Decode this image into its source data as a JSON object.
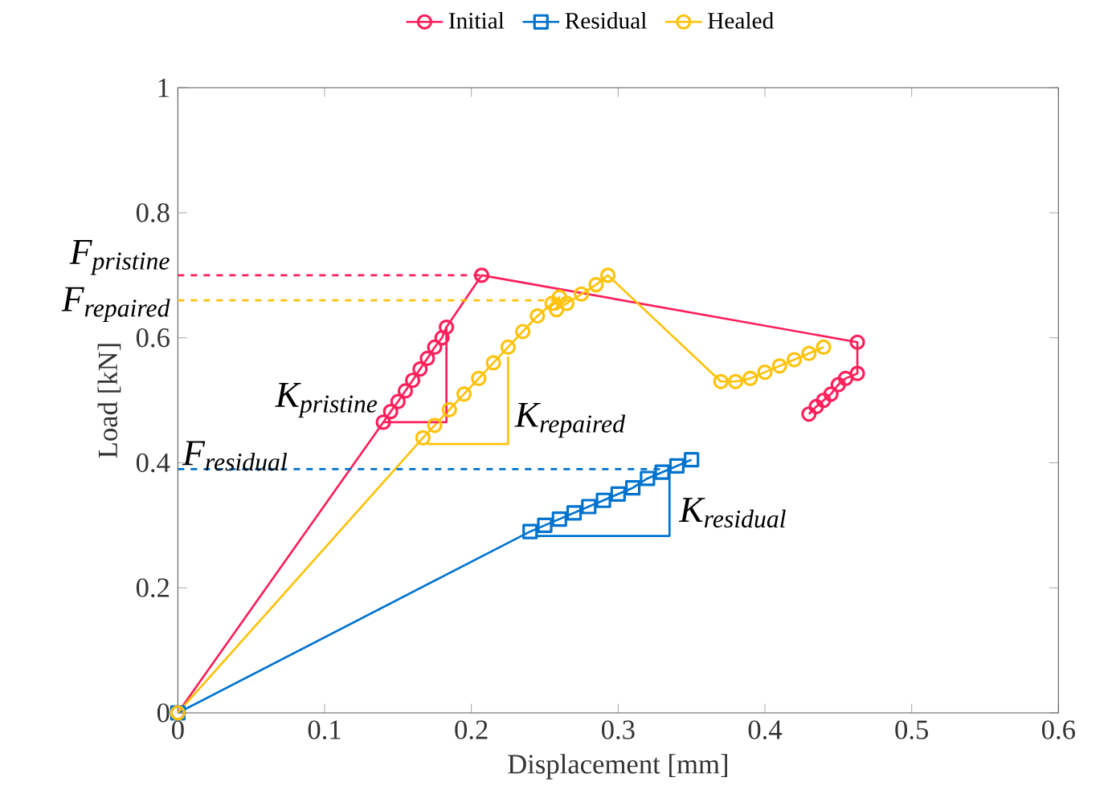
{
  "chart_data": {
    "type": "line",
    "xlabel": "Displacement [mm]",
    "ylabel": "Load [kN]",
    "xlim": [
      0,
      0.6
    ],
    "xticks": [
      0,
      0.1,
      0.2,
      0.3,
      0.4,
      0.5,
      0.6
    ],
    "ylim": [
      0,
      1
    ],
    "yticks": [
      0,
      0.2,
      0.4,
      0.6,
      0.8,
      1
    ],
    "grid": false,
    "legend": "top",
    "series": [
      {
        "name": "Initial",
        "color": "#ff1f5b",
        "marker": "circle",
        "x": [
          0,
          0.14,
          0.145,
          0.15,
          0.155,
          0.16,
          0.165,
          0.17,
          0.175,
          0.18,
          0.183,
          0.207,
          0.463,
          0.463,
          0.455,
          0.45,
          0.445,
          0.44,
          0.435,
          0.43
        ],
        "values": [
          0,
          0.465,
          0.482,
          0.498,
          0.515,
          0.532,
          0.55,
          0.567,
          0.585,
          0.6,
          0.617,
          0.7,
          0.593,
          0.543,
          0.535,
          0.525,
          0.51,
          0.5,
          0.49,
          0.478
        ]
      },
      {
        "name": "Residual",
        "color": "#0073cf",
        "marker": "square",
        "x": [
          0,
          0.24,
          0.25,
          0.26,
          0.27,
          0.28,
          0.29,
          0.3,
          0.31,
          0.32,
          0.33,
          0.34,
          0.35
        ],
        "values": [
          0,
          0.29,
          0.3,
          0.31,
          0.32,
          0.33,
          0.34,
          0.35,
          0.36,
          0.375,
          0.385,
          0.395,
          0.405
        ]
      },
      {
        "name": "Healed",
        "color": "#ffc20a",
        "marker": "circle",
        "x": [
          0,
          0.167,
          0.175,
          0.185,
          0.195,
          0.205,
          0.215,
          0.225,
          0.235,
          0.245,
          0.255,
          0.26,
          0.258,
          0.265,
          0.275,
          0.285,
          0.293,
          0.37,
          0.38,
          0.39,
          0.4,
          0.41,
          0.42,
          0.43,
          0.44
        ],
        "values": [
          0,
          0.44,
          0.46,
          0.485,
          0.51,
          0.535,
          0.56,
          0.585,
          0.61,
          0.635,
          0.655,
          0.665,
          0.645,
          0.655,
          0.67,
          0.685,
          0.7,
          0.53,
          0.53,
          0.535,
          0.545,
          0.555,
          0.565,
          0.575,
          0.585
        ]
      },
      {
        "color": "#ff1f5b",
        "marker": "none",
        "line_style": "dashed",
        "x": [
          0,
          0.207
        ],
        "values": [
          0.7,
          0.7
        ]
      },
      {
        "color": "#ffc20a",
        "marker": "none",
        "line_style": "dashed",
        "x": [
          0,
          0.27
        ],
        "values": [
          0.66,
          0.66
        ]
      },
      {
        "color": "#0073cf",
        "marker": "none",
        "line_style": "dashed",
        "x": [
          0,
          0.33
        ],
        "values": [
          0.39,
          0.39
        ]
      },
      {
        "color": "#ff1f5b",
        "marker": "none",
        "x": [
          0.14,
          0.183,
          0.183
        ],
        "values": [
          0.465,
          0.465,
          0.617
        ]
      },
      {
        "color": "#ffc20a",
        "marker": "none",
        "x": [
          0.17,
          0.225,
          0.225
        ],
        "values": [
          0.43,
          0.43,
          0.57
        ]
      },
      {
        "color": "#0073cf",
        "marker": "none",
        "x": [
          0.245,
          0.335,
          0.335
        ],
        "values": [
          0.283,
          0.283,
          0.39
        ]
      }
    ],
    "annotations": [
      {
        "text": "F$_{pristine}$",
        "x": 0,
        "y": 0.7
      },
      {
        "text": "F$_{repaired}$",
        "x": 0,
        "y": 0.66
      },
      {
        "text": "F$_{residual}$",
        "x": 0,
        "y": 0.39
      },
      {
        "text": "K$_{pristine}$",
        "x": 0.14,
        "y": 0.5
      },
      {
        "text": "K$_{repaired}$",
        "x": 0.225,
        "y": 0.468
      },
      {
        "text": "K$_{residual}$",
        "x": 0.337,
        "y": 0.32
      }
    ]
  }
}
